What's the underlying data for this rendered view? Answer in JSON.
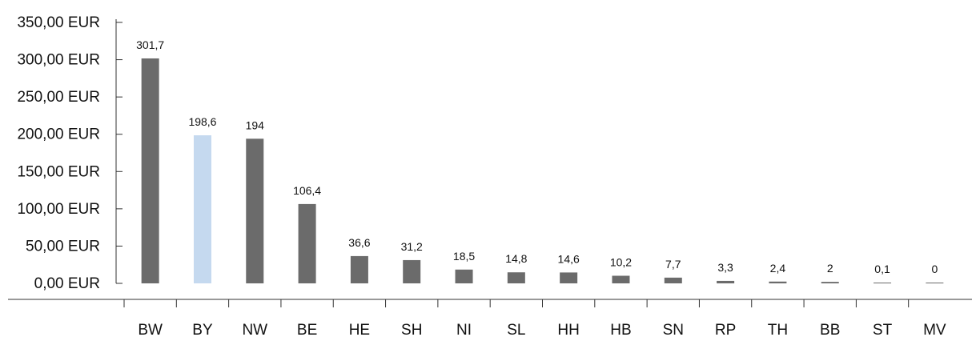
{
  "chart_data": {
    "type": "bar",
    "title": "",
    "xlabel": "",
    "ylabel": "",
    "ylim": [
      0,
      350
    ],
    "yticks": [
      0,
      50,
      100,
      150,
      200,
      250,
      300,
      350
    ],
    "ytick_labels": [
      "0,00 EUR",
      "50,00 EUR",
      "100,00 EUR",
      "150,00 EUR",
      "200,00 EUR",
      "250,00 EUR",
      "300,00 EUR",
      "350,00 EUR"
    ],
    "grid": false,
    "legend": "none",
    "categories": [
      "BW",
      "BY",
      "NW",
      "BE",
      "HE",
      "SH",
      "NI",
      "SL",
      "HH",
      "HB",
      "SN",
      "RP",
      "TH",
      "BB",
      "ST",
      "MV"
    ],
    "values": [
      301.7,
      198.6,
      194,
      106.4,
      36.6,
      31.2,
      18.5,
      14.8,
      14.6,
      10.2,
      7.7,
      3.3,
      2.4,
      2,
      0.1,
      0
    ],
    "value_labels": [
      "301,7",
      "198,6",
      "194",
      "106,4",
      "36,6",
      "31,2",
      "18,5",
      "14,8",
      "14,6",
      "10,2",
      "7,7",
      "3,3",
      "2,4",
      "2",
      "0,1",
      "0"
    ],
    "colors": {
      "default_bar": "#6b6b6b",
      "highlight_bar": "#c5d9ef",
      "axis": "#333333",
      "text": "#111111"
    },
    "highlight_category": "BY"
  }
}
